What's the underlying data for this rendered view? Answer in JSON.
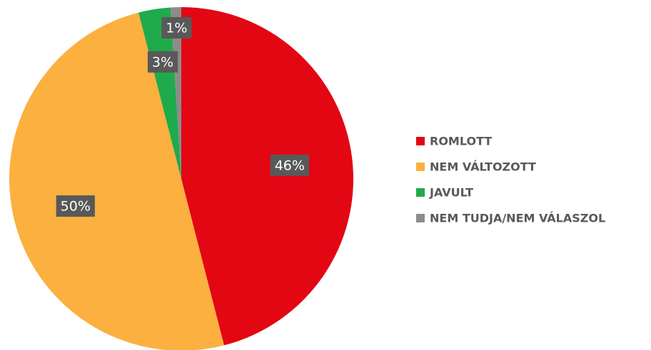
{
  "chart_data": {
    "type": "pie",
    "categories": [
      "ROMLOTT",
      "NEM VÁLTOZOTT",
      "JAVULT",
      "NEM TUDJA/NEM VÁLASZOL"
    ],
    "values": [
      46,
      50,
      3,
      1
    ],
    "value_labels": [
      "46%",
      "50%",
      "3%",
      "1%"
    ],
    "colors": [
      "#e30613",
      "#fbb040",
      "#1fab4b",
      "#8c8c8c"
    ],
    "legend": "right"
  }
}
